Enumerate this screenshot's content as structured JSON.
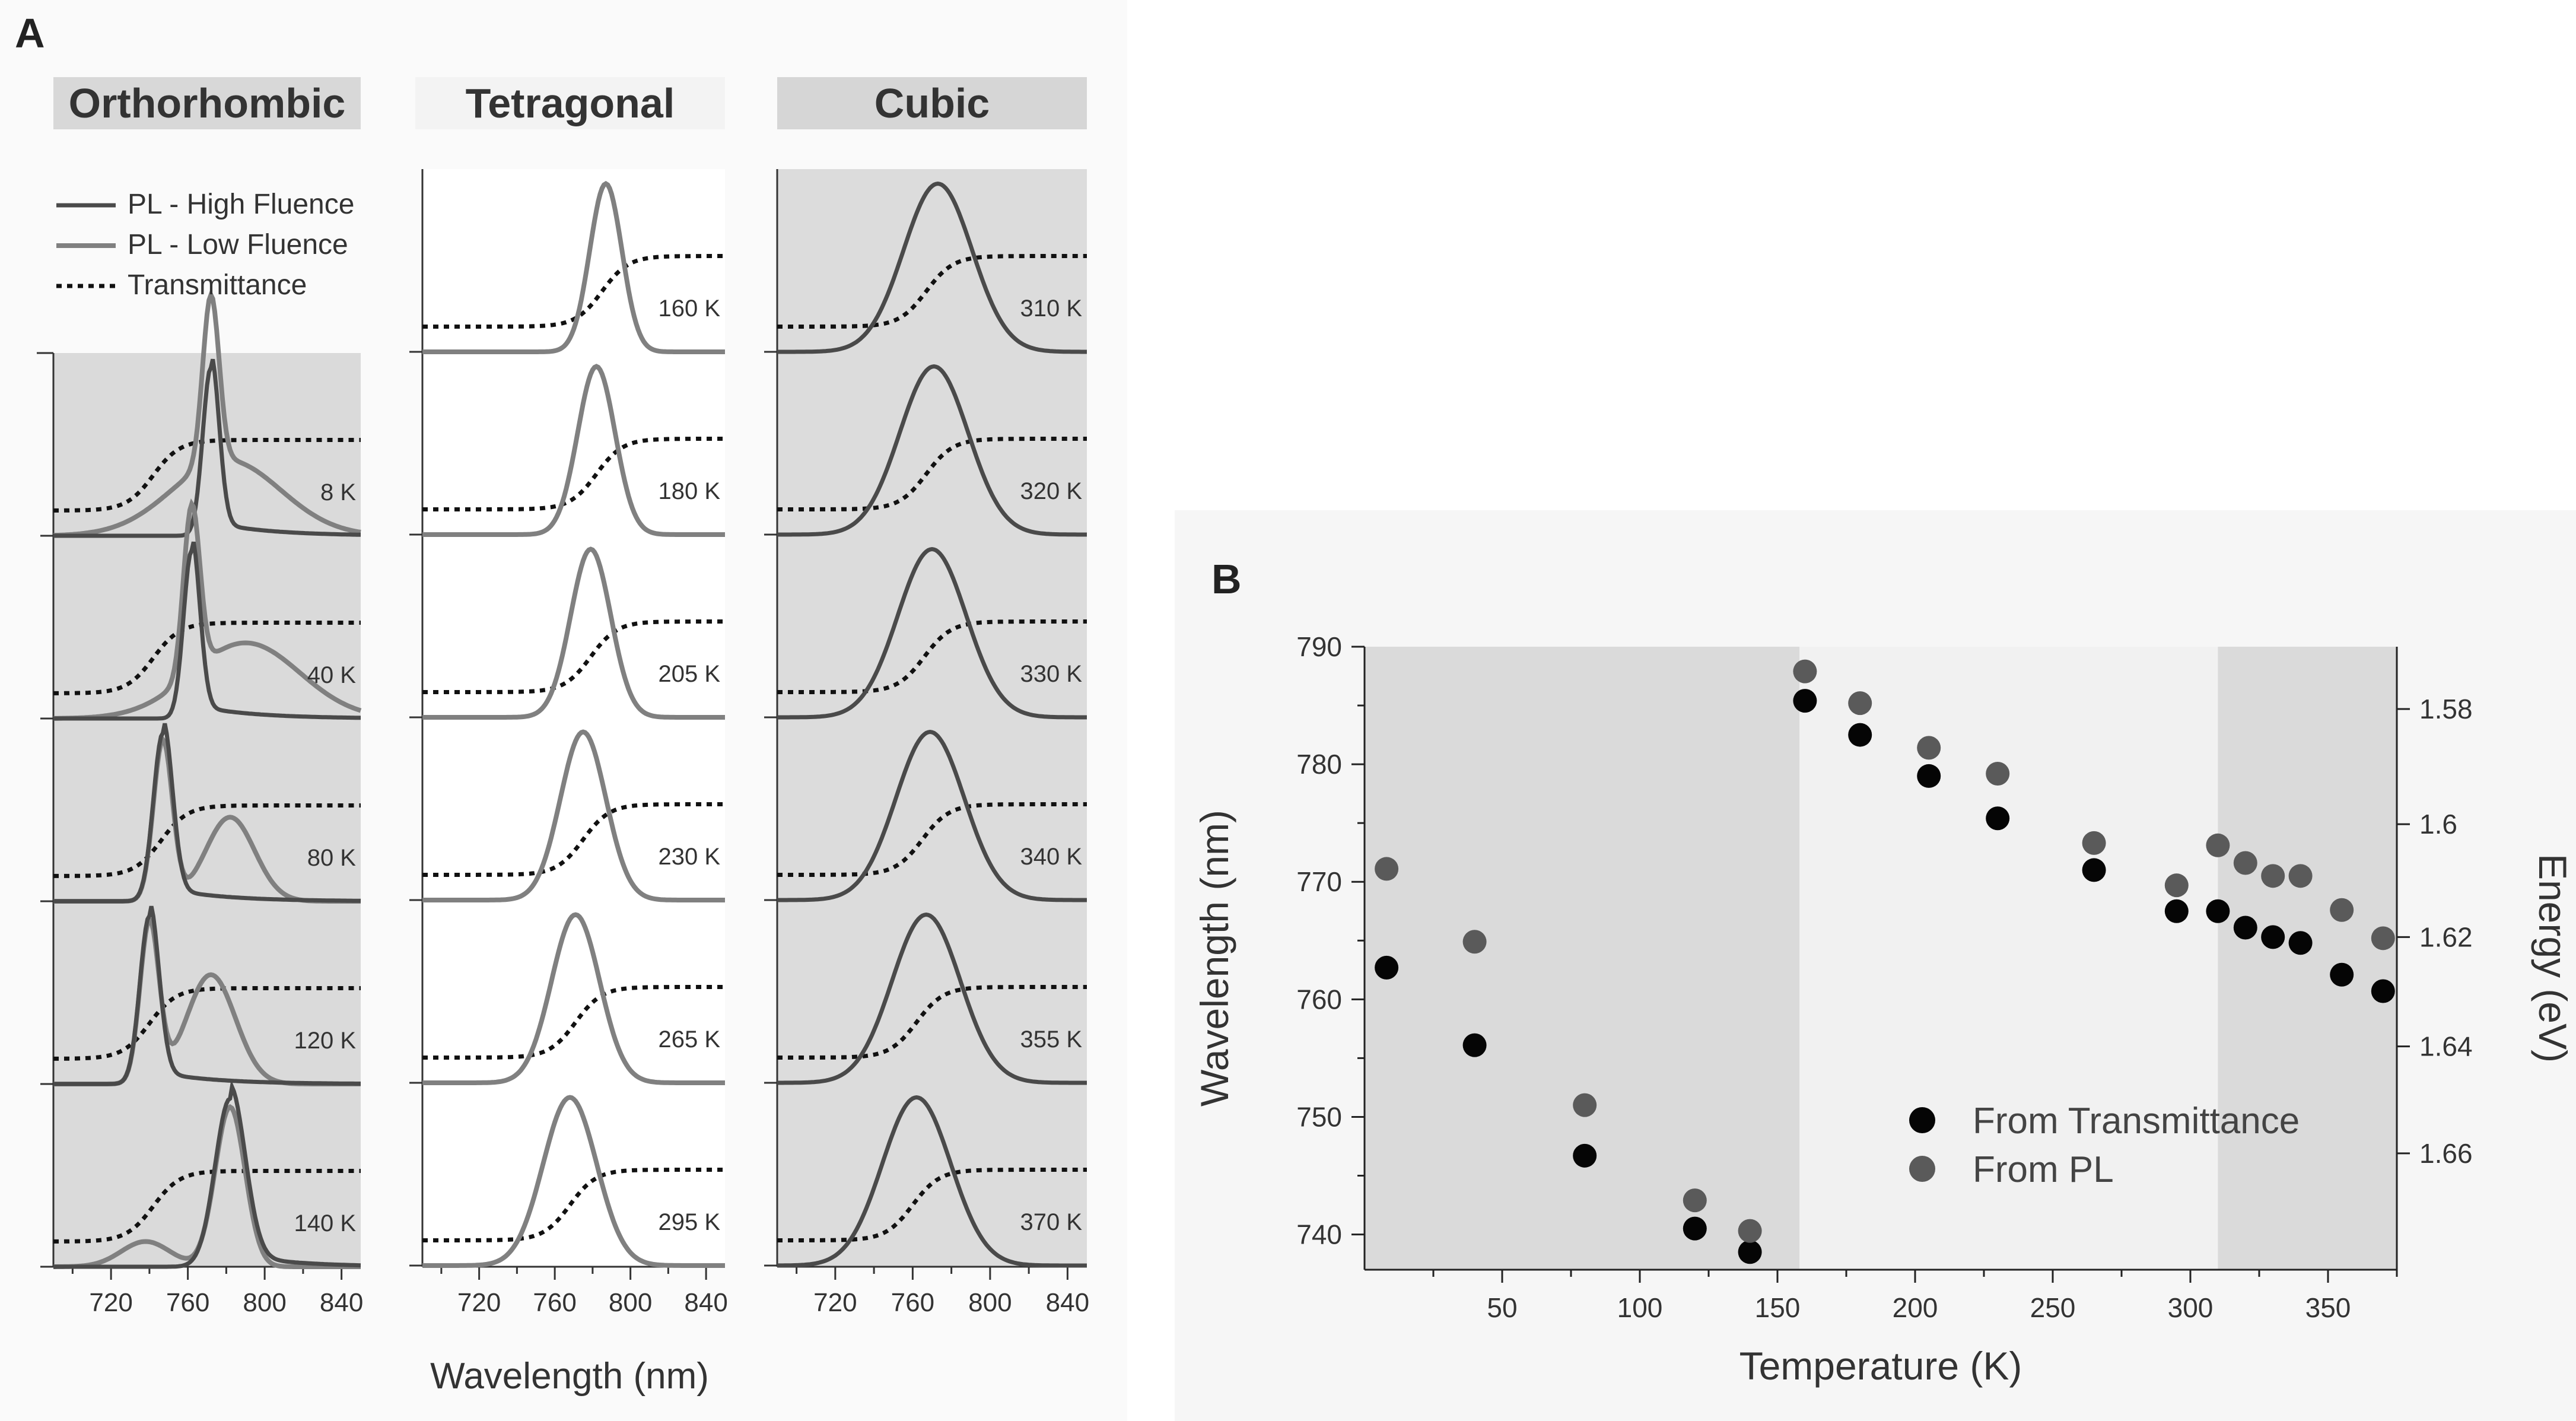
{
  "figure": {
    "panel_a_label": "A",
    "panel_b_label": "B"
  },
  "colors": {
    "high_fluence": "#4a4a4a",
    "low_fluence": "#808080",
    "transmittance": "#111111",
    "shade_dark": "#dadada",
    "shade_light": "#f1f1f1",
    "from_transmittance": "#050505",
    "from_pl": "#5a5a5a"
  },
  "chart_data": [
    {
      "type": "line",
      "panel": "A",
      "title": "",
      "xlabel": "Wavelength (nm)",
      "xlim": [
        690,
        850
      ],
      "xticks": [
        "720",
        "760",
        "800",
        "840"
      ],
      "legend": [
        "PL - High Fluence",
        "PL - Low Fluence",
        "Transmittance"
      ],
      "columns": [
        {
          "phase": "Orthorhombic",
          "spectra": [
            {
              "temp": "8 K",
              "transmittance_mid_nm": 742,
              "high_peak_nm": 772,
              "high_width_nm": 6,
              "low_second_peak_nm": 780,
              "low_second_amp": 0.45
            },
            {
              "temp": "40 K",
              "transmittance_mid_nm": 742,
              "high_peak_nm": 762,
              "high_width_nm": 6,
              "low_second_peak_nm": 790,
              "low_second_amp": 0.45
            },
            {
              "temp": "80 K",
              "transmittance_mid_nm": 746,
              "high_peak_nm": 747,
              "high_width_nm": 7,
              "low_second_peak_nm": 782,
              "low_second_amp": 0.5
            },
            {
              "temp": "120 K",
              "transmittance_mid_nm": 740,
              "high_peak_nm": 740,
              "high_width_nm": 7,
              "low_second_peak_nm": 772,
              "low_second_amp": 0.65
            },
            {
              "temp": "140 K",
              "transmittance_mid_nm": 742,
              "high_peak_nm": 782,
              "high_width_nm": 11,
              "low_second_peak_nm": 738,
              "low_second_amp": 0.15
            }
          ]
        },
        {
          "phase": "Tetragonal",
          "spectra": [
            {
              "temp": "160 K",
              "peak_nm": 787,
              "width_nm": 12,
              "transmittance_mid_nm": 785
            },
            {
              "temp": "180 K",
              "peak_nm": 782,
              "width_nm": 14,
              "transmittance_mid_nm": 782
            },
            {
              "temp": "205 K",
              "peak_nm": 779,
              "width_nm": 15,
              "transmittance_mid_nm": 779
            },
            {
              "temp": "230 K",
              "peak_nm": 775,
              "width_nm": 17,
              "transmittance_mid_nm": 775
            },
            {
              "temp": "265 K",
              "peak_nm": 771,
              "width_nm": 18,
              "transmittance_mid_nm": 771
            },
            {
              "temp": "295 K",
              "peak_nm": 768,
              "width_nm": 20,
              "transmittance_mid_nm": 768
            }
          ]
        },
        {
          "phase": "Cubic",
          "spectra": [
            {
              "temp": "310 K",
              "peak_nm": 773,
              "width_nm": 25,
              "transmittance_mid_nm": 767
            },
            {
              "temp": "320 K",
              "peak_nm": 771,
              "width_nm": 25,
              "transmittance_mid_nm": 767
            },
            {
              "temp": "330 K",
              "peak_nm": 770,
              "width_nm": 25,
              "transmittance_mid_nm": 766
            },
            {
              "temp": "340 K",
              "peak_nm": 769,
              "width_nm": 25,
              "transmittance_mid_nm": 765
            },
            {
              "temp": "355 K",
              "peak_nm": 767,
              "width_nm": 25,
              "transmittance_mid_nm": 762
            },
            {
              "temp": "370 K",
              "peak_nm": 762,
              "width_nm": 25,
              "transmittance_mid_nm": 760
            }
          ]
        }
      ]
    },
    {
      "type": "scatter",
      "panel": "B",
      "xlabel": "Temperature (K)",
      "ylabel": "Wavelength (nm)",
      "ylabel_right": "Energy (eV)",
      "xlim": [
        0,
        375
      ],
      "ylim": [
        737,
        790
      ],
      "xticks": [
        "50",
        "100",
        "150",
        "200",
        "250",
        "300",
        "350"
      ],
      "yticks": [
        "740",
        "750",
        "760",
        "770",
        "780",
        "790"
      ],
      "right_ticks": [
        {
          "label": "1.58",
          "nm": 784.7
        },
        {
          "label": "1.6",
          "nm": 774.9
        },
        {
          "label": "1.62",
          "nm": 765.3
        },
        {
          "label": "1.64",
          "nm": 756.0
        },
        {
          "label": "1.66",
          "nm": 746.9
        }
      ],
      "phase_regions": [
        {
          "from_k": 0,
          "to_k": 158,
          "shade": "dark"
        },
        {
          "from_k": 158,
          "to_k": 310,
          "shade": "light"
        },
        {
          "from_k": 310,
          "to_k": 375,
          "shade": "dark"
        }
      ],
      "series": [
        {
          "name": "From Transmittance",
          "x": [
            8,
            40,
            80,
            120,
            140,
            160,
            180,
            205,
            230,
            265,
            295,
            310,
            320,
            330,
            340,
            355,
            370
          ],
          "y": [
            762.7,
            756.1,
            746.7,
            740.5,
            738.5,
            785.4,
            782.5,
            779.0,
            775.4,
            771.0,
            767.5,
            767.5,
            766.1,
            765.3,
            764.8,
            762.1,
            760.7
          ]
        },
        {
          "name": "From PL",
          "x": [
            8,
            40,
            80,
            120,
            140,
            160,
            180,
            205,
            230,
            265,
            295,
            310,
            320,
            330,
            340,
            355,
            370
          ],
          "y": [
            771.1,
            764.9,
            751.0,
            742.9,
            740.3,
            787.9,
            785.2,
            781.4,
            779.2,
            773.3,
            769.7,
            773.1,
            771.6,
            770.5,
            770.5,
            767.6,
            765.2
          ]
        }
      ]
    }
  ]
}
